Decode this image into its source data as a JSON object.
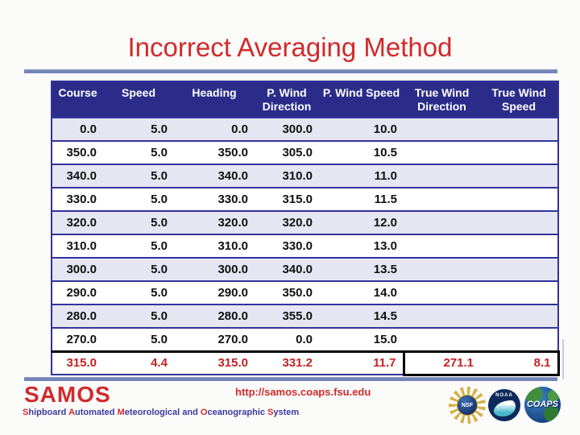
{
  "title": "Incorrect Averaging Method",
  "table": {
    "columns": [
      "Course",
      "Speed",
      "Heading",
      "P. Wind Direction",
      "P. Wind Speed",
      "True Wind Direction",
      "True Wind Speed"
    ],
    "rows": [
      [
        "0.0",
        "5.0",
        "0.0",
        "300.0",
        "10.0",
        "",
        ""
      ],
      [
        "350.0",
        "5.0",
        "350.0",
        "305.0",
        "10.5",
        "",
        ""
      ],
      [
        "340.0",
        "5.0",
        "340.0",
        "310.0",
        "11.0",
        "",
        ""
      ],
      [
        "330.0",
        "5.0",
        "330.0",
        "315.0",
        "11.5",
        "",
        ""
      ],
      [
        "320.0",
        "5.0",
        "320.0",
        "320.0",
        "12.0",
        "",
        ""
      ],
      [
        "310.0",
        "5.0",
        "310.0",
        "330.0",
        "13.0",
        "",
        ""
      ],
      [
        "300.0",
        "5.0",
        "300.0",
        "340.0",
        "13.5",
        "",
        ""
      ],
      [
        "290.0",
        "5.0",
        "290.0",
        "350.0",
        "14.0",
        "",
        ""
      ],
      [
        "280.0",
        "5.0",
        "280.0",
        "355.0",
        "14.5",
        "",
        ""
      ],
      [
        "270.0",
        "5.0",
        "270.0",
        "0.0",
        "15.0",
        "",
        ""
      ]
    ],
    "summary_row": [
      "315.0",
      "4.4",
      "315.0",
      "331.2",
      "11.7",
      "271.1",
      "8.1"
    ]
  },
  "footer": {
    "logo_text": "SAMOS",
    "tagline": [
      {
        "lead": "S",
        "rest": "hipboard"
      },
      {
        "lead": "A",
        "rest": "utomated"
      },
      {
        "lead": "M",
        "rest": "eteorological"
      },
      {
        "lead": "",
        "rest": "and"
      },
      {
        "lead": "O",
        "rest": "ceanographic"
      },
      {
        "lead": "S",
        "rest": "ystem"
      }
    ],
    "url": "http://samos.coaps.fsu.edu",
    "logos": [
      {
        "label": "NSF"
      },
      {
        "label": "NOAA"
      },
      {
        "label": "COAPS"
      }
    ]
  },
  "colors": {
    "title_red": "#d22a2a",
    "summary_red": "#c32323",
    "header_navy": "#2b2c8a",
    "row_alt": "#e6e6f3",
    "divider_blue": "#7384b8",
    "border_navy": "#31339b"
  }
}
